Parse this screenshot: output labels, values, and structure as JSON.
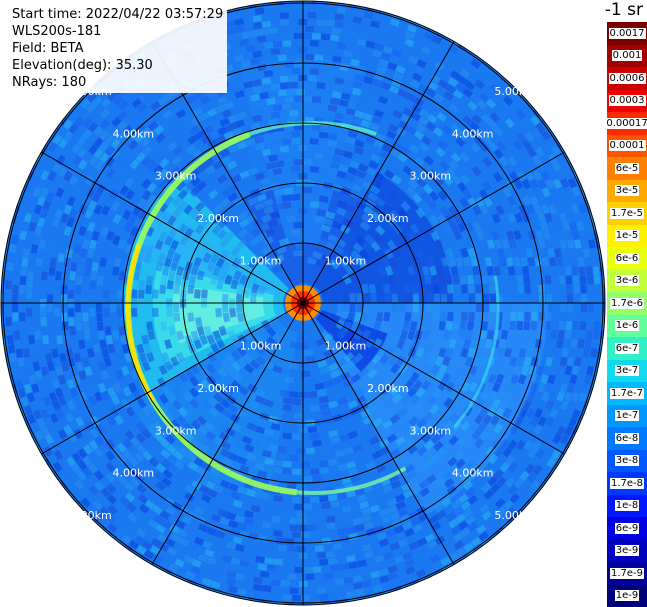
{
  "info": {
    "start_time": "Start time: 2022/04/22 03:57:29",
    "instrument": "WLS200s-181",
    "field": "Field: BETA",
    "elevation": "Elevation(deg): 35.30",
    "nrays": "NRays: 180"
  },
  "unit_label": "-1 sr",
  "range_labels": [
    "1.00km",
    "2.00km",
    "3.00km",
    "4.00km",
    "5.00km"
  ],
  "colorbar": {
    "labels": [
      "0.0017",
      "0.001",
      "0.0006",
      "0.0003",
      "0.00017",
      "0.0001",
      "6e-5",
      "3e-5",
      "1.7e-5",
      "1e-5",
      "6e-6",
      "3e-6",
      "1.7e-6",
      "1e-6",
      "6e-7",
      "3e-7",
      "1.7e-7",
      "1e-7",
      "6e-8",
      "3e-8",
      "1.7e-8",
      "1e-8",
      "6e-9",
      "3e-9",
      "1.7e-9",
      "1e-9"
    ],
    "colors": [
      "#7a0000",
      "#a00000",
      "#c80000",
      "#ee0000",
      "#ff2a00",
      "#ff5500",
      "#ff8000",
      "#ffa800",
      "#ffd000",
      "#fff000",
      "#e8ff10",
      "#c0ff3a",
      "#90ff68",
      "#60ff98",
      "#30f0c8",
      "#10d8ef",
      "#00b8ff",
      "#0098ff",
      "#0078ff",
      "#0058ff",
      "#0038ff",
      "#0018ff",
      "#0000e0",
      "#0000c0",
      "#00009a",
      "#000078"
    ]
  }
}
